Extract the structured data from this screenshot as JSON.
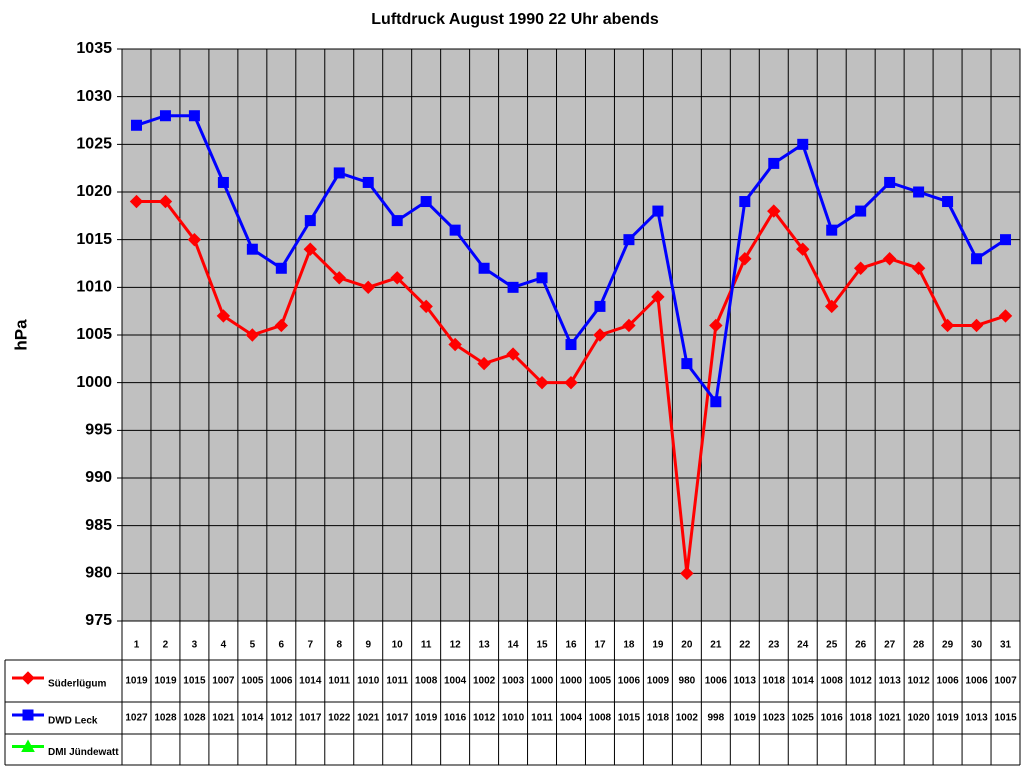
{
  "chart_data": {
    "type": "line",
    "title": "Luftdruck August 1990 22 Uhr abends",
    "y_label": "hPa",
    "categories": [
      "1",
      "2",
      "3",
      "4",
      "5",
      "6",
      "7",
      "8",
      "9",
      "10",
      "11",
      "12",
      "13",
      "14",
      "15",
      "16",
      "17",
      "18",
      "19",
      "20",
      "21",
      "22",
      "23",
      "24",
      "25",
      "26",
      "27",
      "28",
      "29",
      "30",
      "31"
    ],
    "series": [
      {
        "name": "Süderlügum",
        "color": "#ff0000",
        "marker": "diamond",
        "values": [
          1019,
          1019,
          1015,
          1007,
          1005,
          1006,
          1014,
          1011,
          1010,
          1011,
          1008,
          1004,
          1002,
          1003,
          1000,
          1000,
          1005,
          1006,
          1009,
          980,
          1006,
          1013,
          1018,
          1014,
          1008,
          1012,
          1013,
          1012,
          1006,
          1006,
          1007
        ]
      },
      {
        "name": "DWD Leck",
        "color": "#0000ff",
        "marker": "square",
        "values": [
          1027,
          1028,
          1028,
          1021,
          1014,
          1012,
          1017,
          1022,
          1021,
          1017,
          1019,
          1016,
          1012,
          1010,
          1011,
          1004,
          1008,
          1015,
          1018,
          1002,
          998,
          1019,
          1023,
          1025,
          1016,
          1018,
          1021,
          1020,
          1019,
          1013,
          1015
        ]
      },
      {
        "name": "DMI Jündewatt",
        "color": "#00ff00",
        "marker": "triangle",
        "values": [
          null,
          null,
          null,
          null,
          null,
          null,
          null,
          null,
          null,
          null,
          null,
          null,
          null,
          null,
          null,
          null,
          null,
          null,
          null,
          null,
          null,
          null,
          null,
          null,
          null,
          null,
          null,
          null,
          null,
          null,
          null
        ]
      }
    ],
    "ylim": [
      975,
      1035
    ],
    "yticks": [
      975,
      980,
      985,
      990,
      995,
      1000,
      1005,
      1010,
      1015,
      1020,
      1025,
      1030,
      1035
    ],
    "grid": true,
    "plot_background": "#c0c0c0"
  }
}
